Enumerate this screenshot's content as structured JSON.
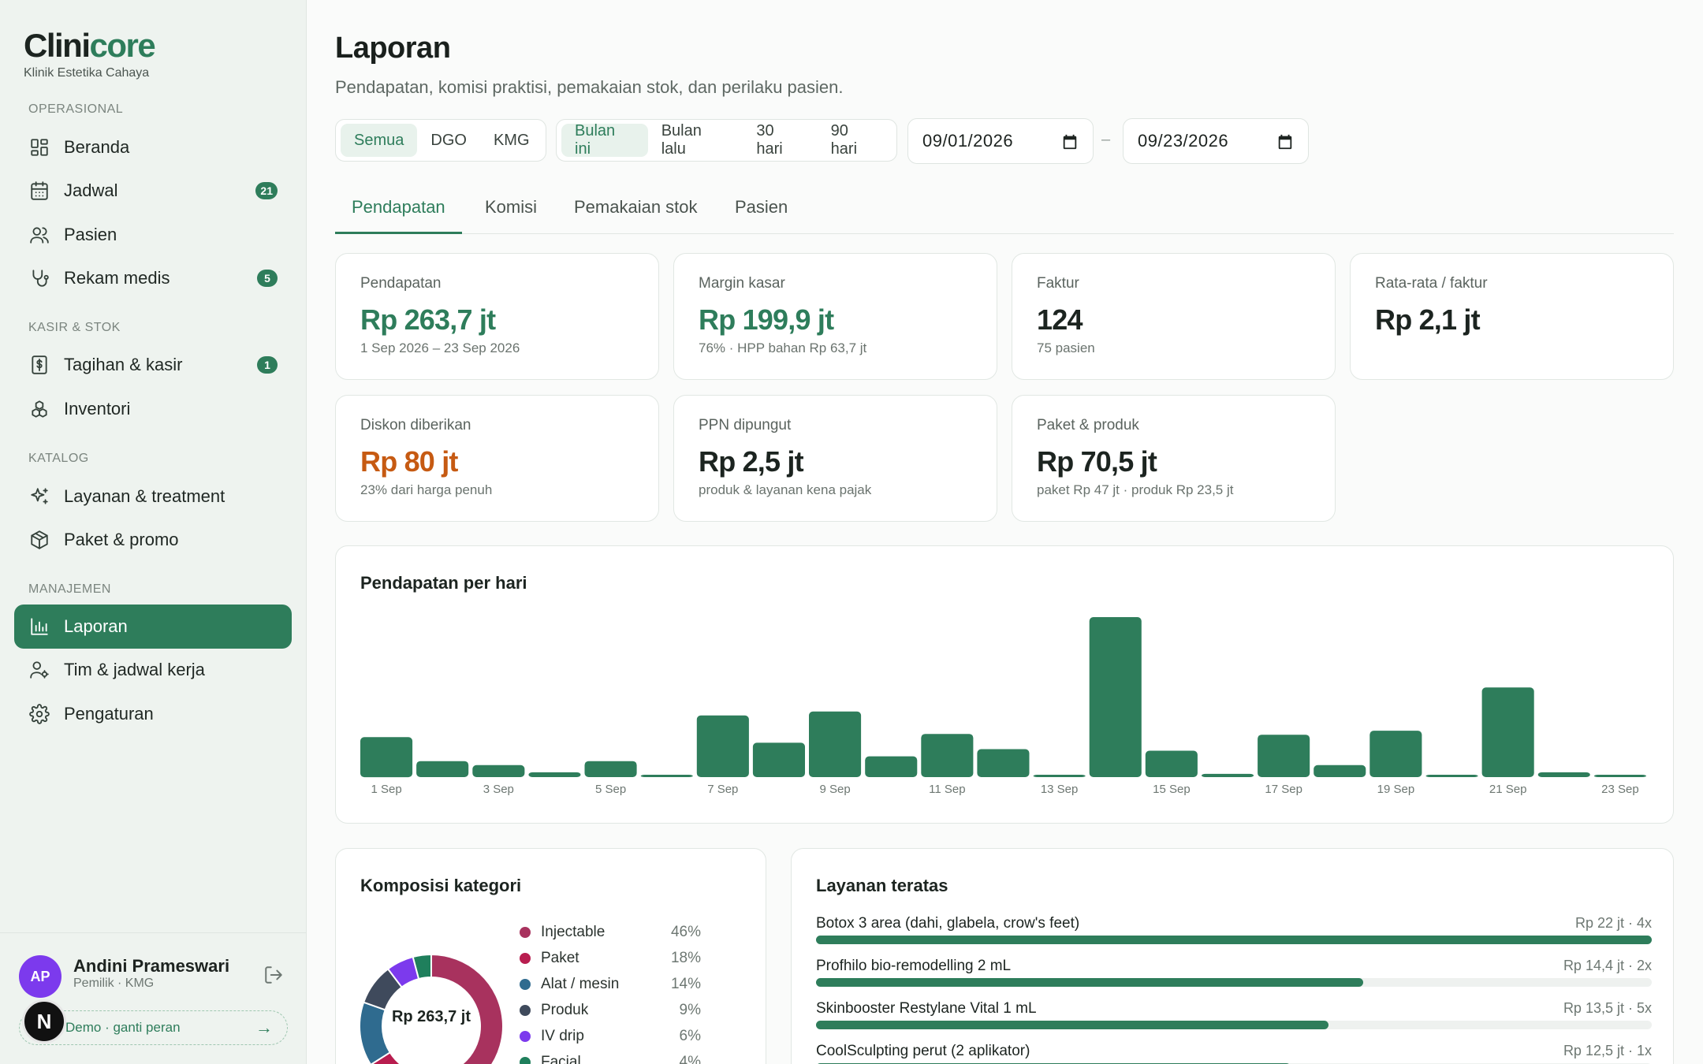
{
  "brand": {
    "name_a": "Clini",
    "name_b": "core",
    "subtitle": "Klinik Estetika Cahaya"
  },
  "sidebar": {
    "sections": [
      {
        "label": "OPERASIONAL"
      },
      {
        "label": "KASIR & STOK"
      },
      {
        "label": "KATALOG"
      },
      {
        "label": "MANAJEMEN"
      }
    ],
    "items": [
      {
        "label": "Beranda",
        "icon": "dashboard-icon"
      },
      {
        "label": "Jadwal",
        "icon": "calendar-icon",
        "badge": "21"
      },
      {
        "label": "Pasien",
        "icon": "users-icon"
      },
      {
        "label": "Rekam medis",
        "icon": "stethoscope-icon",
        "badge": "5"
      },
      {
        "label": "Tagihan & kasir",
        "icon": "receipt-icon",
        "badge": "1"
      },
      {
        "label": "Inventori",
        "icon": "boxes-icon"
      },
      {
        "label": "Layanan & treatment",
        "icon": "sparkles-icon"
      },
      {
        "label": "Paket & promo",
        "icon": "package-icon"
      },
      {
        "label": "Laporan",
        "icon": "bar-chart-icon",
        "active": true
      },
      {
        "label": "Tim & jadwal kerja",
        "icon": "user-cog-icon"
      },
      {
        "label": "Pengaturan",
        "icon": "gear-icon"
      }
    ]
  },
  "user": {
    "initials": "AP",
    "name": "Andini Prameswari",
    "role": "Pemilik · KMG",
    "switch_label": "Demo · ganti peran",
    "switch_arrow": "→",
    "n_badge": "N"
  },
  "header": {
    "title": "Laporan",
    "subtitle": "Pendapatan, komisi praktisi, pemakaian stok, dan perilaku pasien."
  },
  "filters": {
    "branches": [
      "Semua",
      "DGO",
      "KMG"
    ],
    "branch_selected": "Semua",
    "periods": [
      "Bulan ini",
      "Bulan lalu",
      "30 hari",
      "90 hari"
    ],
    "period_selected": "Bulan ini",
    "date_from": "09/01/2026",
    "date_to": "09/23/2026",
    "date_separator": "–"
  },
  "tabs": [
    "Pendapatan",
    "Komisi",
    "Pemakaian stok",
    "Pasien"
  ],
  "kpis": [
    {
      "label": "Pendapatan",
      "value": "Rp 263,7 jt",
      "note": "1 Sep 2026 – 23 Sep 2026",
      "tone": "green"
    },
    {
      "label": "Margin kasar",
      "value": "Rp 199,9 jt",
      "note": "76% · HPP bahan Rp 63,7 jt",
      "tone": "green"
    },
    {
      "label": "Faktur",
      "value": "124",
      "note": "75 pasien",
      "tone": "dark"
    },
    {
      "label": "Rata-rata / faktur",
      "value": "Rp 2,1 jt",
      "note": "",
      "tone": "dark"
    },
    {
      "label": "Diskon diberikan",
      "value": "Rp 80 jt",
      "note": "23% dari harga penuh",
      "tone": "orange"
    },
    {
      "label": "PPN dipungut",
      "value": "Rp 2,5 jt",
      "note": "produk & layanan kena pajak",
      "tone": "dark"
    },
    {
      "label": "Paket & produk",
      "value": "Rp 70,5 jt",
      "note": "paket Rp 47 jt · produk Rp 23,5 jt",
      "tone": "dark"
    }
  ],
  "revenue_chart": {
    "title": "Pendapatan per hari"
  },
  "chart_data": [
    {
      "type": "bar",
      "title": "Pendapatan per hari",
      "categories": [
        "1 Sep",
        "2 Sep",
        "3 Sep",
        "4 Sep",
        "5 Sep",
        "6 Sep",
        "7 Sep",
        "8 Sep",
        "9 Sep",
        "10 Sep",
        "11 Sep",
        "12 Sep",
        "13 Sep",
        "14 Sep",
        "15 Sep",
        "16 Sep",
        "17 Sep",
        "18 Sep",
        "19 Sep",
        "20 Sep",
        "21 Sep",
        "22 Sep",
        "23 Sep"
      ],
      "tick_labels": [
        "1 Sep",
        "3 Sep",
        "5 Sep",
        "7 Sep",
        "9 Sep",
        "11 Sep",
        "13 Sep",
        "15 Sep",
        "17 Sep",
        "19 Sep",
        "21 Sep",
        "23 Sep"
      ],
      "values": [
        25,
        10,
        7.5,
        3,
        10,
        1.5,
        38.5,
        21.5,
        41,
        13,
        27,
        17.5,
        1.5,
        100,
        16.5,
        2,
        26.5,
        7.5,
        29,
        1.5,
        56,
        3,
        1.5
      ],
      "value_unit": "relative (tallest day = 100)",
      "color": "#2e7d5b"
    },
    {
      "type": "pie",
      "title": "Komposisi kategori",
      "center_label": "Rp 263,7 jt",
      "labels": [
        "Injectable",
        "Paket",
        "Alat / mesin",
        "Produk",
        "IV drip",
        "Facial"
      ],
      "values": [
        46,
        18,
        14,
        9,
        6,
        4
      ],
      "colors": [
        "#a8325e",
        "#b81d4f",
        "#2f6b8f",
        "#3f4a5c",
        "#7c3aed",
        "#1f7f5c"
      ]
    }
  ],
  "composition": {
    "title": "Komposisi kategori"
  },
  "top_services": {
    "title": "Layanan teratas",
    "items": [
      {
        "name": "Botox 3 area (dahi, glabela, crow's feet)",
        "amount": "Rp 22 jt",
        "count": "4x",
        "share": 1.0
      },
      {
        "name": "Profhilo bio-remodelling 2 mL",
        "amount": "Rp 14,4 jt",
        "count": "2x",
        "share": 0.655
      },
      {
        "name": "Skinbooster Restylane Vital 1 mL",
        "amount": "Rp 13,5 jt",
        "count": "5x",
        "share": 0.613
      },
      {
        "name": "CoolSculpting perut (2 aplikator)",
        "amount": "Rp 12,5 jt",
        "count": "1x",
        "share": 0.568
      }
    ]
  }
}
